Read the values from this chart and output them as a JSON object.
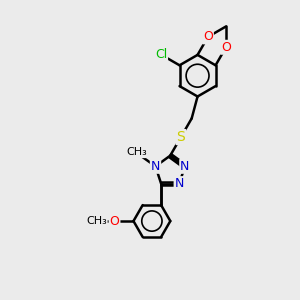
{
  "background_color": "#ebebeb",
  "atom_colors": {
    "C": "#000000",
    "N": "#0000cc",
    "O": "#ff0000",
    "S": "#cccc00",
    "Cl": "#00bb00",
    "H": "#000000"
  },
  "bond_color": "#000000",
  "bond_width": 1.8,
  "font_size": 10,
  "figsize": [
    3.0,
    3.0
  ],
  "dpi": 100
}
